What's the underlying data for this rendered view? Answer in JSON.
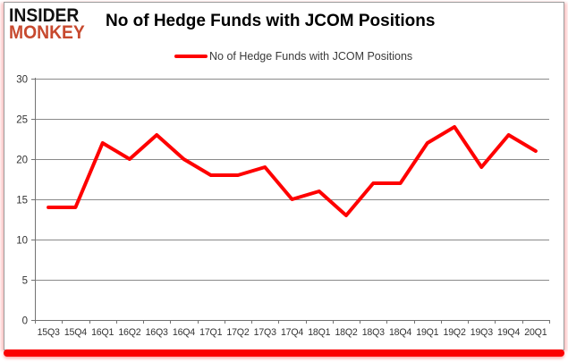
{
  "branding": {
    "line1": "INSIDER",
    "line2": "MONKEY"
  },
  "header": {
    "title": "No of Hedge Funds with JCOM Positions"
  },
  "legend": {
    "label": "No of Hedge Funds with JCOM Positions"
  },
  "chart_data": {
    "type": "line",
    "title": "No of Hedge Funds with JCOM Positions",
    "categories": [
      "15Q3",
      "15Q4",
      "16Q1",
      "16Q2",
      "16Q3",
      "16Q4",
      "17Q1",
      "17Q2",
      "17Q3",
      "17Q4",
      "18Q1",
      "18Q2",
      "18Q3",
      "18Q4",
      "19Q1",
      "19Q2",
      "19Q3",
      "19Q4",
      "20Q1"
    ],
    "series": [
      {
        "name": "No of Hedge Funds with JCOM Positions",
        "color": "#fe0000",
        "values": [
          14,
          14,
          22,
          20,
          23,
          20,
          18,
          18,
          19,
          15,
          16,
          13,
          17,
          17,
          22,
          24,
          19,
          23,
          21
        ]
      }
    ],
    "xlabel": "",
    "ylabel": "",
    "ylim": [
      0,
      30
    ],
    "yticks": [
      0,
      5,
      10,
      15,
      20,
      25,
      30
    ],
    "grid": true,
    "legend_position": "top"
  },
  "colors": {
    "series": "#fe0000",
    "grid": "#8a8a8a",
    "axis": "#737373",
    "tick_label": "#333333",
    "title": "#000000",
    "brand_black": "#111111",
    "brand_red": "#c7492e",
    "accent_bar": "#fb0101",
    "frame_border": "#9a9a9a"
  }
}
